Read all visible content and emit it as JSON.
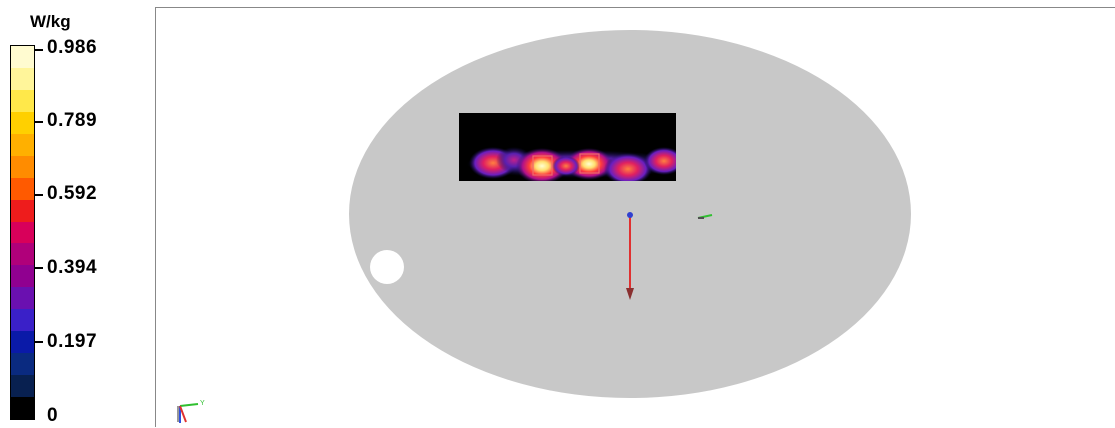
{
  "colorbar": {
    "unit": "W/kg",
    "ticks": [
      "0.986",
      "0.789",
      "0.592",
      "0.394",
      "0.197",
      "0"
    ],
    "steps": [
      "#fffbd0",
      "#fff59a",
      "#ffe84a",
      "#ffd000",
      "#ffb000",
      "#ff8c00",
      "#ff5a00",
      "#ee1c1c",
      "#d8005a",
      "#b0007a",
      "#900090",
      "#6a10b0",
      "#3a20c8",
      "#0a1aa8",
      "#0a2a80",
      "#082050",
      "#000000"
    ]
  },
  "scan_area": {
    "colors": {
      "background": "#000000",
      "hot": "#ffe070",
      "mid": "#ff3c3c",
      "low": "#6a1fc0"
    }
  },
  "phantom": {
    "fill": "#c8c8c8",
    "hole_fill": "#ffffff"
  },
  "probe": {
    "line_color": "#e03030",
    "tip_color": "#3040d0"
  },
  "axes": {
    "x_color": "#30c030",
    "y_color": "#e03030",
    "z_color": "#3050e0"
  }
}
